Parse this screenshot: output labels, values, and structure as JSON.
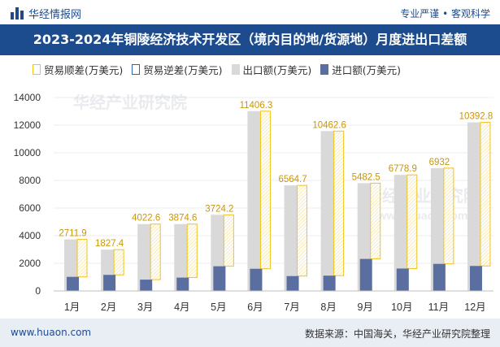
{
  "header": {
    "brand": "华经情报网",
    "tagline": "专业严谨 • 客观科学"
  },
  "title": "2023-2024年铜陵经济技术开发区（境内目的地/货源地）月度进出口差额",
  "legend": {
    "surplus": "贸易顺差(万美元)",
    "deficit": "贸易逆差(万美元)",
    "export": "出口额(万美元)",
    "import": "进口额(万美元)"
  },
  "watermark": "华经产业研究院",
  "watermark_url": "www.huaon.com",
  "footer": {
    "url": "www.huaon.com",
    "source": "数据来源：中国海关，华经产业研究院整理"
  },
  "colors": {
    "header_bg": "#1d4c8e",
    "surplus_border": "#f0c419",
    "export_bar": "#d9d9d9",
    "import_bar": "#5a6ea0",
    "footer_bg": "#e9eef5"
  },
  "chart_data": {
    "type": "bar",
    "categories": [
      "1月",
      "2月",
      "3月",
      "4月",
      "5月",
      "6月",
      "7月",
      "8月",
      "9月",
      "10月",
      "11月",
      "12月"
    ],
    "series": [
      {
        "name": "出口额(万美元)",
        "values": [
          3730,
          2990,
          4840,
          4840,
          5510,
          13010,
          7640,
          11570,
          7800,
          8400,
          8890,
          12200
        ]
      },
      {
        "name": "进口额(万美元)",
        "values": [
          1018,
          1163,
          818,
          966,
          1786,
          1604,
          1075,
          1107,
          2317,
          1621,
          1958,
          1807
        ]
      },
      {
        "name": "贸易顺差(万美元)",
        "values": [
          2711.9,
          1827.4,
          4022.6,
          3874.6,
          3724.2,
          11406.3,
          6564.7,
          10462.6,
          5482.5,
          6778.9,
          6932,
          10392.8
        ]
      }
    ],
    "data_labels": [
      "2711.9",
      "1827.4",
      "4022.6",
      "3874.6",
      "3724.2",
      "11406.3",
      "6564.7",
      "10462.6",
      "5482.5",
      "6778.9",
      "6932",
      "10392.8"
    ],
    "yticks": [
      "0",
      "2000",
      "4000",
      "6000",
      "8000",
      "10000",
      "12000",
      "14000"
    ],
    "ylim": [
      0,
      14000
    ]
  }
}
